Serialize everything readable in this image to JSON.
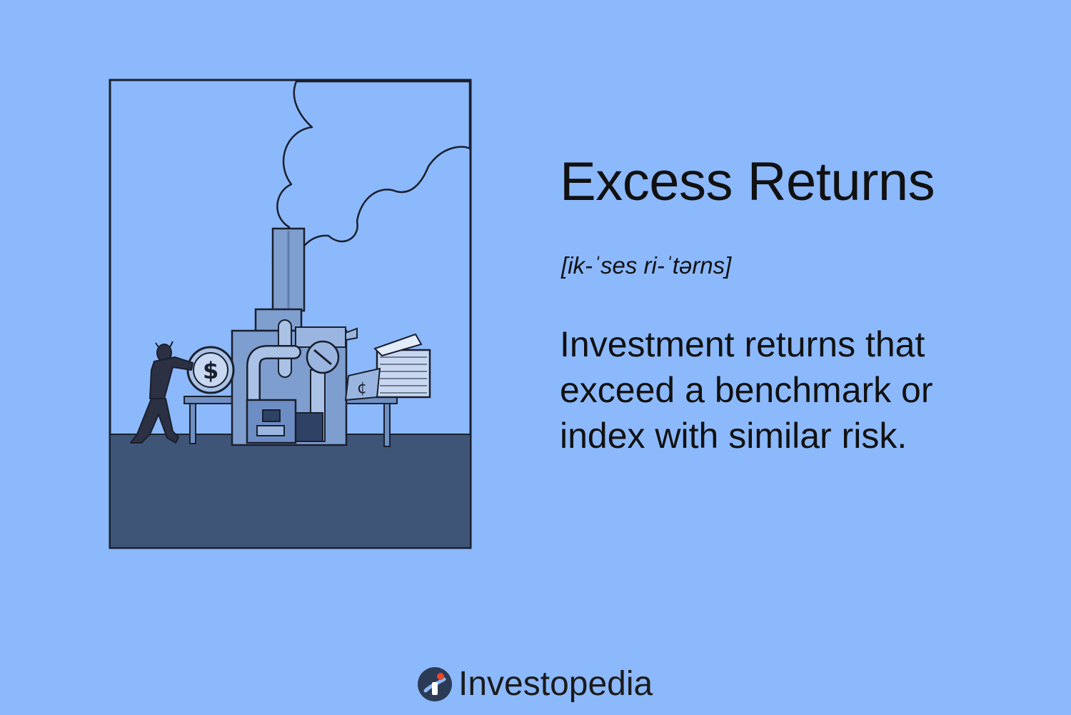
{
  "term": {
    "title": "Excess Returns",
    "pronunciation": "[ik-ˈses ri-ˈtərns]",
    "definition": "Investment returns that exceed a benchmark or index with similar risk."
  },
  "illustration": {
    "subject": "person pushing a dollar coin into a factory machine that prints cash",
    "coin_glyph": "$",
    "cent_glyph": "¢"
  },
  "brand": {
    "name": "Investopedia",
    "icon": "investopedia-logo-icon"
  },
  "colors": {
    "background": "#8cb9fc",
    "ground": "#3f5578",
    "machine": "#7fa0cf",
    "outline": "#1a1f2e",
    "logo_mark": "#2b3a55",
    "logo_accent": "#e9492e"
  }
}
